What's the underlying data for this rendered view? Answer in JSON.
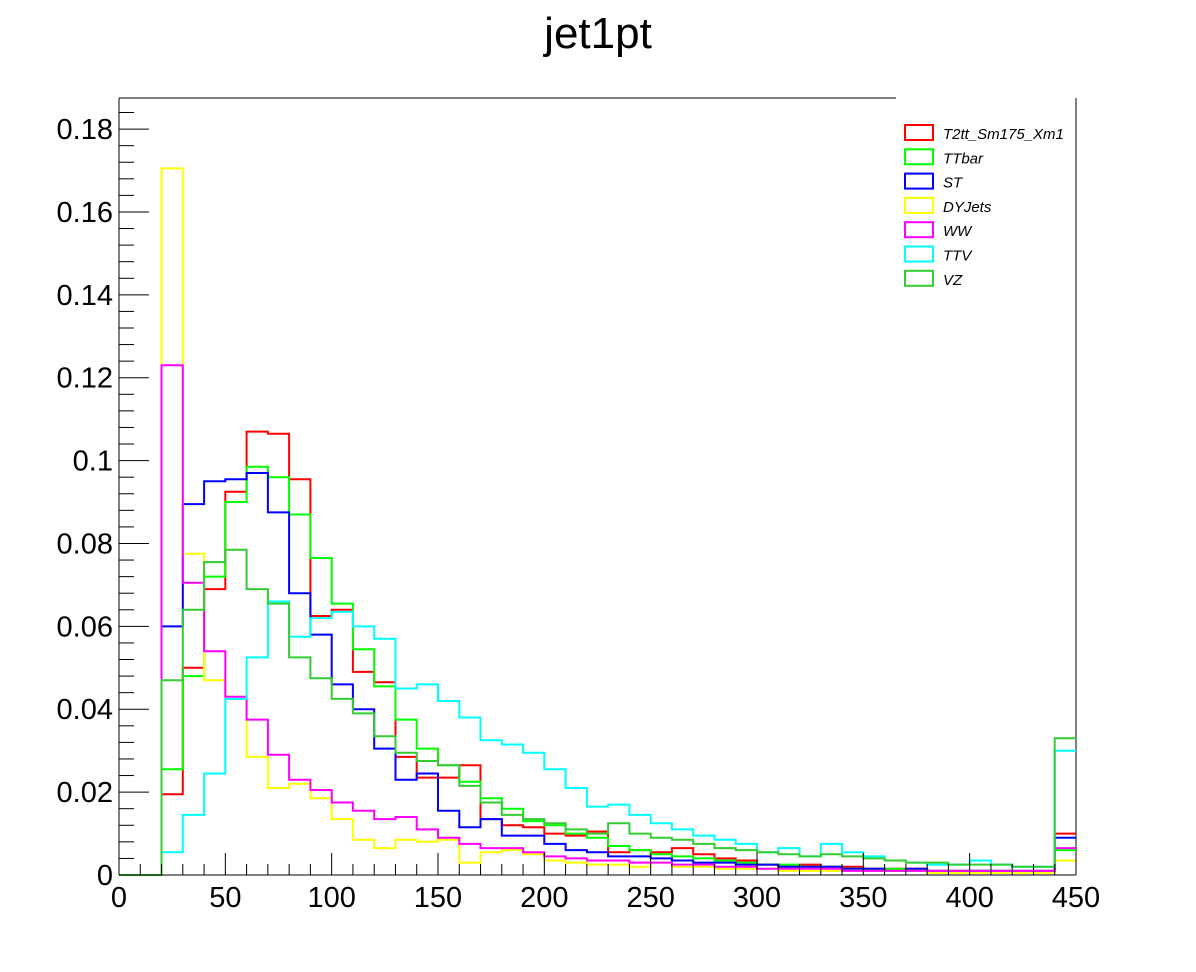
{
  "chart_data": {
    "type": "step-histogram",
    "title": "jet1pt",
    "xlabel": "",
    "ylabel": "",
    "xlim": [
      0,
      450
    ],
    "ylim": [
      0,
      0.1875
    ],
    "x_ticks": [
      0,
      50,
      100,
      150,
      200,
      250,
      300,
      350,
      400,
      450
    ],
    "x_tick_labels": [
      "0",
      "50",
      "100",
      "150",
      "200",
      "250",
      "300",
      "350",
      "400",
      "450"
    ],
    "y_ticks": [
      0,
      0.02,
      0.04,
      0.06,
      0.08,
      0.1,
      0.12,
      0.14,
      0.16,
      0.18
    ],
    "y_tick_labels": [
      "0",
      "0.02",
      "0.04",
      "0.06",
      "0.08",
      "0.1",
      "0.12",
      "0.14",
      "0.16",
      "0.18"
    ],
    "legend_position": "top-right",
    "bin_edges": [
      0,
      10,
      20,
      30,
      40,
      50,
      60,
      70,
      80,
      90,
      100,
      110,
      120,
      130,
      140,
      150,
      160,
      170,
      180,
      190,
      200,
      210,
      220,
      230,
      240,
      250,
      260,
      270,
      280,
      290,
      300,
      310,
      320,
      330,
      340,
      350,
      360,
      370,
      380,
      390,
      400,
      410,
      420,
      430,
      440,
      450
    ],
    "series": [
      {
        "name": "T2tt_Sm175_Xm1",
        "color": "#ff0000",
        "values": [
          0,
          0,
          0.0195,
          0.05,
          0.069,
          0.0925,
          0.107,
          0.1065,
          0.0955,
          0.0625,
          0.064,
          0.049,
          0.0465,
          0.0285,
          0.0235,
          0.0235,
          0.0265,
          0.0135,
          0.012,
          0.0115,
          0.01,
          0.0095,
          0.0105,
          0.0055,
          0.006,
          0.0055,
          0.0065,
          0.005,
          0.004,
          0.0035,
          0.0025,
          0.002,
          0.0025,
          0.002,
          0.002,
          0.0015,
          0.0015,
          0.0015,
          0.001,
          0.001,
          0.001,
          0.001,
          0.001,
          0.001,
          0.01
        ]
      },
      {
        "name": "TTbar",
        "color": "#00ff00",
        "values": [
          0,
          0,
          0.0255,
          0.048,
          0.072,
          0.09,
          0.0985,
          0.096,
          0.087,
          0.0765,
          0.0655,
          0.0545,
          0.0455,
          0.0375,
          0.0305,
          0.0265,
          0.0225,
          0.0185,
          0.016,
          0.013,
          0.012,
          0.01,
          0.009,
          0.007,
          0.006,
          0.005,
          0.0045,
          0.004,
          0.0035,
          0.003,
          0.0025,
          0.0025,
          0.002,
          0.002,
          0.0015,
          0.0015,
          0.0015,
          0.001,
          0.001,
          0.001,
          0.001,
          0.001,
          0.001,
          0.001,
          0.006
        ]
      },
      {
        "name": "ST",
        "color": "#0000ff",
        "values": [
          0,
          0,
          0.06,
          0.0895,
          0.095,
          0.0955,
          0.097,
          0.0875,
          0.068,
          0.058,
          0.046,
          0.04,
          0.0305,
          0.023,
          0.0245,
          0.0155,
          0.0115,
          0.0135,
          0.0095,
          0.0095,
          0.0075,
          0.006,
          0.0055,
          0.0045,
          0.0045,
          0.004,
          0.0035,
          0.003,
          0.003,
          0.0025,
          0.0025,
          0.002,
          0.002,
          0.002,
          0.0015,
          0.0015,
          0.001,
          0.0015,
          0.001,
          0.001,
          0.001,
          0.001,
          0.001,
          0.001,
          0.009
        ]
      },
      {
        "name": "DYJets",
        "color": "#ffff00",
        "values": [
          0,
          0,
          0.1705,
          0.0775,
          0.047,
          0.043,
          0.0285,
          0.021,
          0.022,
          0.0185,
          0.0135,
          0.0085,
          0.0065,
          0.0085,
          0.008,
          0.0085,
          0.003,
          0.0055,
          0.006,
          0.005,
          0.0035,
          0.003,
          0.0025,
          0.0025,
          0.002,
          0.003,
          0.002,
          0.002,
          0.0015,
          0.0015,
          0.0015,
          0.001,
          0.001,
          0.001,
          0.001,
          0.001,
          0.001,
          0.001,
          0.0005,
          0.0005,
          0.0005,
          0.0005,
          0.0005,
          0.0005,
          0.0035
        ]
      },
      {
        "name": "WW",
        "color": "#ff00ff",
        "values": [
          0,
          0,
          0.123,
          0.0705,
          0.054,
          0.043,
          0.0375,
          0.029,
          0.023,
          0.0205,
          0.0175,
          0.0155,
          0.0135,
          0.014,
          0.011,
          0.009,
          0.0075,
          0.0065,
          0.0065,
          0.0055,
          0.0045,
          0.004,
          0.0035,
          0.0035,
          0.003,
          0.003,
          0.0025,
          0.0025,
          0.002,
          0.002,
          0.0015,
          0.0015,
          0.0015,
          0.0015,
          0.001,
          0.001,
          0.001,
          0.001,
          0.001,
          0.001,
          0.001,
          0.001,
          0.001,
          0.001,
          0.0065
        ]
      },
      {
        "name": "TTV",
        "color": "#00ffff",
        "values": [
          0,
          0,
          0.0055,
          0.0145,
          0.0245,
          0.0425,
          0.0525,
          0.066,
          0.0575,
          0.062,
          0.0635,
          0.06,
          0.057,
          0.045,
          0.046,
          0.042,
          0.038,
          0.0325,
          0.0315,
          0.0295,
          0.0255,
          0.021,
          0.0165,
          0.017,
          0.0145,
          0.0125,
          0.011,
          0.0095,
          0.0085,
          0.0075,
          0.0055,
          0.0065,
          0.0045,
          0.0075,
          0.0055,
          0.0045,
          0.0035,
          0.003,
          0.0025,
          0.0025,
          0.0035,
          0.0025,
          0.002,
          0.002,
          0.03
        ]
      },
      {
        "name": "VZ",
        "color": "#33cc33",
        "values": [
          0,
          0,
          0.047,
          0.064,
          0.0755,
          0.0785,
          0.069,
          0.0655,
          0.0525,
          0.0475,
          0.0425,
          0.039,
          0.0335,
          0.0295,
          0.0275,
          0.0265,
          0.0215,
          0.0175,
          0.0145,
          0.0135,
          0.0125,
          0.011,
          0.01,
          0.0125,
          0.01,
          0.009,
          0.0085,
          0.0075,
          0.0065,
          0.006,
          0.0055,
          0.005,
          0.0045,
          0.005,
          0.0045,
          0.004,
          0.0035,
          0.003,
          0.003,
          0.0025,
          0.0025,
          0.0025,
          0.002,
          0.002,
          0.033
        ]
      }
    ]
  }
}
